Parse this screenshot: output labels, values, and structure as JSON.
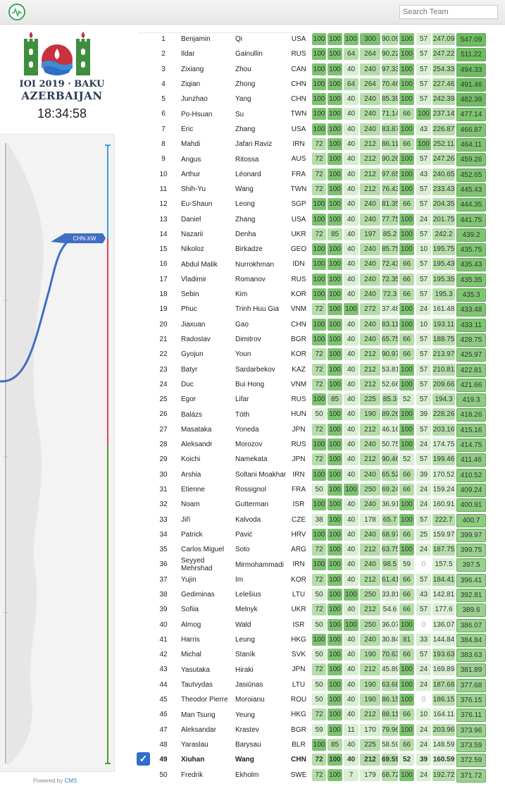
{
  "header": {
    "search_placeholder": "Search Team"
  },
  "sidebar": {
    "title_line1": "IOI 2019 · BAKU",
    "title_line2": "AZERBAIJAN",
    "clock": "18:34:58",
    "graph_label": "CHN-XW",
    "powered_prefix": "Powered by",
    "powered_brand": "CMS"
  },
  "colors": {
    "full": "#7cc36f",
    "partial": "#b4dea8",
    "low": "#d8efd2",
    "zero": "#ffffff",
    "accent_blue": "#2f6ec9"
  },
  "rows": [
    [
      "1",
      "Benjamin",
      "Qi",
      "USA",
      "100",
      "100",
      "100",
      "300",
      "90.09",
      "100",
      "57",
      "247.09",
      "547.09"
    ],
    [
      "2",
      "Ildar",
      "Gainullin",
      "RUS",
      "100",
      "100",
      "64",
      "264",
      "90.22",
      "100",
      "57",
      "247.22",
      "511.22"
    ],
    [
      "3",
      "Zixiang",
      "Zhou",
      "CAN",
      "100",
      "100",
      "40",
      "240",
      "97.33",
      "100",
      "57",
      "254.33",
      "494.33"
    ],
    [
      "4",
      "Ziqian",
      "Zhong",
      "CHN",
      "100",
      "100",
      "64",
      "264",
      "70.46",
      "100",
      "57",
      "227.46",
      "491.46"
    ],
    [
      "5",
      "Junzhao",
      "Yang",
      "CHN",
      "100",
      "100",
      "40",
      "240",
      "85.39",
      "100",
      "57",
      "242.39",
      "482.39"
    ],
    [
      "6",
      "Po-Hsuan",
      "Su",
      "TWN",
      "100",
      "100",
      "40",
      "240",
      "71.14",
      "66",
      "100",
      "237.14",
      "477.14"
    ],
    [
      "7",
      "Eric",
      "Zhang",
      "USA",
      "100",
      "100",
      "40",
      "240",
      "83.87",
      "100",
      "43",
      "226.87",
      "466.87"
    ],
    [
      "8",
      "Mahdi",
      "Jafari Raviz",
      "IRN",
      "72",
      "100",
      "40",
      "212",
      "86.11",
      "66",
      "100",
      "252.11",
      "464.11"
    ],
    [
      "9",
      "Angus",
      "Ritossa",
      "AUS",
      "72",
      "100",
      "40",
      "212",
      "90.26",
      "100",
      "57",
      "247.26",
      "459.26"
    ],
    [
      "10",
      "Arthur",
      "Léonard",
      "FRA",
      "72",
      "100",
      "40",
      "212",
      "97.65",
      "100",
      "43",
      "240.65",
      "452.65"
    ],
    [
      "11",
      "Shih-Yu",
      "Wang",
      "TWN",
      "72",
      "100",
      "40",
      "212",
      "76.43",
      "100",
      "57",
      "233.43",
      "445.43"
    ],
    [
      "12",
      "Eu-Shaun",
      "Leong",
      "SGP",
      "100",
      "100",
      "40",
      "240",
      "81.35",
      "66",
      "57",
      "204.35",
      "444.35"
    ],
    [
      "13",
      "Daniel",
      "Zhang",
      "USA",
      "100",
      "100",
      "40",
      "240",
      "77.75",
      "100",
      "24",
      "201.75",
      "441.75"
    ],
    [
      "14",
      "Nazarii",
      "Denha",
      "UKR",
      "72",
      "85",
      "40",
      "197",
      "85.2",
      "100",
      "57",
      "242.2",
      "439.2"
    ],
    [
      "15",
      "Nikoloz",
      "Birkadze",
      "GEO",
      "100",
      "100",
      "40",
      "240",
      "85.75",
      "100",
      "10",
      "195.75",
      "435.75"
    ],
    [
      "16",
      "Abdul Malik",
      "Nurrokhman",
      "IDN",
      "100",
      "100",
      "40",
      "240",
      "72.43",
      "66",
      "57",
      "195.43",
      "435.43"
    ],
    [
      "17",
      "Vladimir",
      "Romanov",
      "RUS",
      "100",
      "100",
      "40",
      "240",
      "72.35",
      "66",
      "57",
      "195.35",
      "435.35"
    ],
    [
      "18",
      "Sebin",
      "Kim",
      "KOR",
      "100",
      "100",
      "40",
      "240",
      "72.3",
      "66",
      "57",
      "195.3",
      "435.3"
    ],
    [
      "19",
      "Phuc",
      "Trinh Huu Gia",
      "VNM",
      "72",
      "100",
      "100",
      "272",
      "37.48",
      "100",
      "24",
      "161.48",
      "433.48"
    ],
    [
      "20",
      "Jiaxuan",
      "Gao",
      "CHN",
      "100",
      "100",
      "40",
      "240",
      "83.11",
      "100",
      "10",
      "193.11",
      "433.11"
    ],
    [
      "21",
      "Radoslav",
      "Dimitrov",
      "BGR",
      "100",
      "100",
      "40",
      "240",
      "65.75",
      "66",
      "57",
      "188.75",
      "428.75"
    ],
    [
      "22",
      "Gyojun",
      "Youn",
      "KOR",
      "72",
      "100",
      "40",
      "212",
      "90.97",
      "66",
      "57",
      "213.97",
      "425.97"
    ],
    [
      "23",
      "Batyr",
      "Sardarbekov",
      "KAZ",
      "72",
      "100",
      "40",
      "212",
      "53.81",
      "100",
      "57",
      "210.81",
      "422.81"
    ],
    [
      "24",
      "Duc",
      "Bui Hong",
      "VNM",
      "72",
      "100",
      "40",
      "212",
      "52.66",
      "100",
      "57",
      "209.66",
      "421.66"
    ],
    [
      "25",
      "Egor",
      "Lifar",
      "RUS",
      "100",
      "85",
      "40",
      "225",
      "85.3",
      "52",
      "57",
      "194.3",
      "419.3"
    ],
    [
      "26",
      "Balázs",
      "Tóth",
      "HUN",
      "50",
      "100",
      "40",
      "190",
      "89.26",
      "100",
      "39",
      "228.26",
      "418.26"
    ],
    [
      "27",
      "Masataka",
      "Yoneda",
      "JPN",
      "72",
      "100",
      "40",
      "212",
      "46.16",
      "100",
      "57",
      "203.16",
      "415.16"
    ],
    [
      "28",
      "Aleksandr",
      "Morozov",
      "RUS",
      "100",
      "100",
      "40",
      "240",
      "50.75",
      "100",
      "24",
      "174.75",
      "414.75"
    ],
    [
      "29",
      "Koichi",
      "Namekata",
      "JPN",
      "72",
      "100",
      "40",
      "212",
      "90.46",
      "52",
      "57",
      "199.46",
      "411.46"
    ],
    [
      "30",
      "Arshia",
      "Soltani Moakhar",
      "IRN",
      "100",
      "100",
      "40",
      "240",
      "65.52",
      "66",
      "39",
      "170.52",
      "410.52"
    ],
    [
      "31",
      "Etienne",
      "Rossignol",
      "FRA",
      "50",
      "100",
      "100",
      "250",
      "69.24",
      "66",
      "24",
      "159.24",
      "409.24"
    ],
    [
      "32",
      "Noam",
      "Gutterman",
      "ISR",
      "100",
      "100",
      "40",
      "240",
      "36.91",
      "100",
      "24",
      "160.91",
      "400.91"
    ],
    [
      "33",
      "Jiří",
      "Kalvoda",
      "CZE",
      "38",
      "100",
      "40",
      "178",
      "65.7",
      "100",
      "57",
      "222.7",
      "400.7"
    ],
    [
      "34",
      "Patrick",
      "Pavić",
      "HRV",
      "100",
      "100",
      "40",
      "240",
      "68.97",
      "66",
      "25",
      "159.97",
      "399.97"
    ],
    [
      "35",
      "Carlos Miguel",
      "Soto",
      "ARG",
      "72",
      "100",
      "40",
      "212",
      "63.75",
      "100",
      "24",
      "187.75",
      "399.75"
    ],
    [
      "36",
      "Seyyed Mehrshad",
      "Mirmohammadi",
      "IRN",
      "100",
      "100",
      "40",
      "240",
      "98.5",
      "59",
      "0",
      "157.5",
      "397.5"
    ],
    [
      "37",
      "Yujin",
      "Im",
      "KOR",
      "72",
      "100",
      "40",
      "212",
      "61.41",
      "66",
      "57",
      "184.41",
      "396.41"
    ],
    [
      "38",
      "Gediminas",
      "Lelešius",
      "LTU",
      "50",
      "100",
      "100",
      "250",
      "33.81",
      "66",
      "43",
      "142.81",
      "392.81"
    ],
    [
      "39",
      "Sofiia",
      "Melnyk",
      "UKR",
      "72",
      "100",
      "40",
      "212",
      "54.6",
      "66",
      "57",
      "177.6",
      "389.6"
    ],
    [
      "40",
      "Almog",
      "Wald",
      "ISR",
      "50",
      "100",
      "100",
      "250",
      "36.07",
      "100",
      "0",
      "136.07",
      "386.07"
    ],
    [
      "41",
      "Harris",
      "Leung",
      "HKG",
      "100",
      "100",
      "40",
      "240",
      "30.84",
      "81",
      "33",
      "144.84",
      "384.84"
    ],
    [
      "42",
      "Michal",
      "Staník",
      "SVK",
      "50",
      "100",
      "40",
      "190",
      "70.63",
      "66",
      "57",
      "193.63",
      "383.63"
    ],
    [
      "43",
      "Yasutaka",
      "Hiraki",
      "JPN",
      "72",
      "100",
      "40",
      "212",
      "45.89",
      "100",
      "24",
      "169.89",
      "381.89"
    ],
    [
      "44",
      "Tautvydas",
      "Jasiūnas",
      "LTU",
      "50",
      "100",
      "40",
      "190",
      "63.68",
      "100",
      "24",
      "187.68",
      "377.68"
    ],
    [
      "45",
      "Theodor Pierre",
      "Moroianu",
      "ROU",
      "50",
      "100",
      "40",
      "190",
      "86.15",
      "100",
      "0",
      "186.15",
      "376.15"
    ],
    [
      "46",
      "Man Tsung",
      "Yeung",
      "HKG",
      "72",
      "100",
      "40",
      "212",
      "88.11",
      "66",
      "10",
      "164.11",
      "376.11"
    ],
    [
      "47",
      "Aleksandar",
      "Krastev",
      "BGR",
      "59",
      "100",
      "11",
      "170",
      "79.96",
      "100",
      "24",
      "203.96",
      "373.96"
    ],
    [
      "48",
      "Yaraslau",
      "Barysau",
      "BLR",
      "100",
      "85",
      "40",
      "225",
      "58.59",
      "66",
      "24",
      "148.59",
      "373.59"
    ],
    [
      "49",
      "Xiuhan",
      "Wang",
      "CHN",
      "72",
      "100",
      "40",
      "212",
      "69.59",
      "52",
      "39",
      "160.59",
      "372.59"
    ],
    [
      "50",
      "Fredrik",
      "Ekholm",
      "SWE",
      "72",
      "100",
      "7",
      "179",
      "68.72",
      "100",
      "24",
      "192.72",
      "371.72"
    ]
  ],
  "selected_rank": "49"
}
